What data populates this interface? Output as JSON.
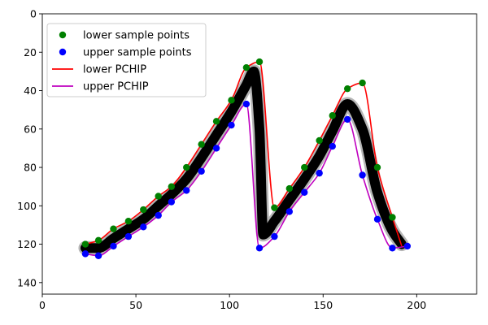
{
  "chart_data": {
    "type": "scatter",
    "xlim": [
      0,
      232
    ],
    "ylim": [
      146,
      0
    ],
    "y_inverted": true,
    "grid": false,
    "legend_placement": "top-left",
    "x_ticks": [
      0,
      50,
      100,
      150,
      200
    ],
    "y_ticks": [
      0,
      20,
      40,
      60,
      80,
      100,
      120,
      140
    ],
    "series": [
      {
        "name": "lower sample points",
        "kind": "scatter",
        "color": "#008000",
        "points": [
          [
            23,
            120
          ],
          [
            30,
            118
          ],
          [
            38,
            112
          ],
          [
            46,
            108
          ],
          [
            54,
            102
          ],
          [
            62,
            95
          ],
          [
            69,
            90
          ],
          [
            77,
            80
          ],
          [
            85,
            68
          ],
          [
            93,
            56
          ],
          [
            101,
            45
          ],
          [
            109,
            28
          ],
          [
            116,
            25
          ],
          [
            124,
            101
          ],
          [
            132,
            91
          ],
          [
            140,
            80
          ],
          [
            148,
            66
          ],
          [
            155,
            53
          ],
          [
            163,
            39
          ],
          [
            171,
            36
          ],
          [
            179,
            80
          ],
          [
            187,
            106
          ]
        ]
      },
      {
        "name": "upper sample points",
        "kind": "scatter",
        "color": "#0000ff",
        "points": [
          [
            23,
            125
          ],
          [
            30,
            126
          ],
          [
            38,
            121
          ],
          [
            46,
            116
          ],
          [
            54,
            111
          ],
          [
            62,
            105
          ],
          [
            69,
            98
          ],
          [
            77,
            92
          ],
          [
            85,
            82
          ],
          [
            93,
            70
          ],
          [
            101,
            58
          ],
          [
            109,
            47
          ],
          [
            116,
            122
          ],
          [
            124,
            116
          ],
          [
            132,
            103
          ],
          [
            140,
            93
          ],
          [
            148,
            83
          ],
          [
            155,
            69
          ],
          [
            163,
            55
          ],
          [
            171,
            84
          ],
          [
            179,
            107
          ],
          [
            187,
            122
          ],
          [
            195,
            121
          ]
        ]
      },
      {
        "name": "lower PCHIP",
        "kind": "line",
        "color": "#ff0000",
        "points": [
          [
            23,
            120
          ],
          [
            30,
            118
          ],
          [
            38,
            112
          ],
          [
            46,
            108
          ],
          [
            54,
            102
          ],
          [
            62,
            95
          ],
          [
            69,
            90
          ],
          [
            77,
            80
          ],
          [
            85,
            68
          ],
          [
            93,
            56
          ],
          [
            101,
            45
          ],
          [
            109,
            28
          ],
          [
            116,
            25
          ],
          [
            124,
            101
          ],
          [
            132,
            91
          ],
          [
            140,
            80
          ],
          [
            148,
            66
          ],
          [
            155,
            53
          ],
          [
            163,
            39
          ],
          [
            171,
            36
          ],
          [
            179,
            80
          ],
          [
            187,
            106
          ],
          [
            192,
            121
          ]
        ]
      },
      {
        "name": "upper PCHIP",
        "kind": "line",
        "color": "#bf00bf",
        "points": [
          [
            23,
            125
          ],
          [
            30,
            126
          ],
          [
            38,
            121
          ],
          [
            46,
            116
          ],
          [
            54,
            111
          ],
          [
            62,
            105
          ],
          [
            69,
            98
          ],
          [
            77,
            92
          ],
          [
            85,
            82
          ],
          [
            93,
            70
          ],
          [
            101,
            58
          ],
          [
            109,
            47
          ],
          [
            116,
            122
          ],
          [
            124,
            116
          ],
          [
            132,
            103
          ],
          [
            140,
            93
          ],
          [
            148,
            83
          ],
          [
            155,
            69
          ],
          [
            163,
            55
          ],
          [
            171,
            84
          ],
          [
            179,
            107
          ],
          [
            187,
            122
          ],
          [
            195,
            121
          ]
        ]
      }
    ],
    "background_stroke": {
      "color": "#000000",
      "points": [
        [
          23,
          122
        ],
        [
          30,
          122
        ],
        [
          38,
          117
        ],
        [
          46,
          112
        ],
        [
          54,
          107
        ],
        [
          62,
          100
        ],
        [
          69,
          94
        ],
        [
          77,
          86
        ],
        [
          85,
          75
        ],
        [
          93,
          63
        ],
        [
          101,
          51
        ],
        [
          109,
          37
        ],
        [
          113,
          30
        ],
        [
          116,
          60
        ],
        [
          118,
          115
        ],
        [
          124,
          108
        ],
        [
          132,
          97
        ],
        [
          140,
          86
        ],
        [
          148,
          74
        ],
        [
          155,
          61
        ],
        [
          163,
          47
        ],
        [
          171,
          60
        ],
        [
          179,
          93
        ],
        [
          187,
          113
        ],
        [
          192,
          120
        ]
      ]
    }
  }
}
